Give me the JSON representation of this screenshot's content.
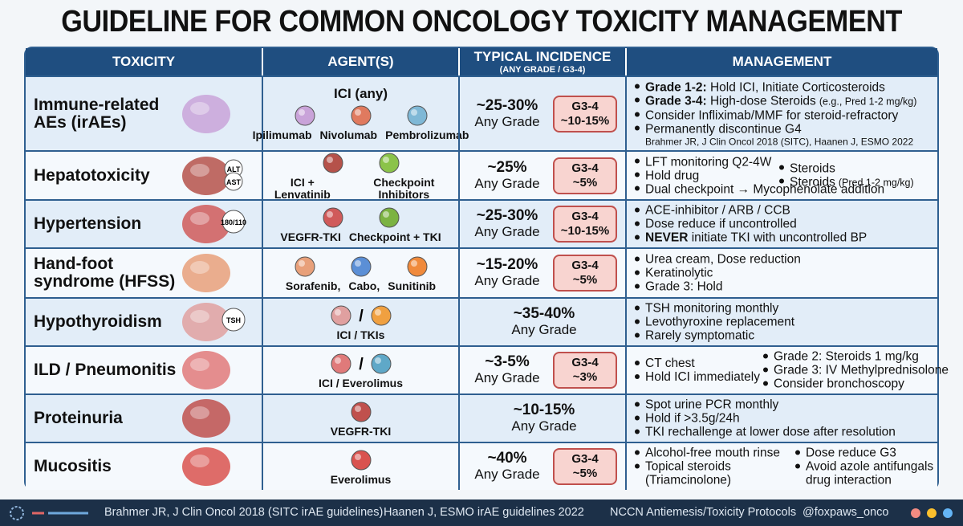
{
  "header": {
    "title": "GUIDELINE FOR COMMON ONCOLOGY TOXICITY MANAGEMENT"
  },
  "table": {
    "columns": [
      "TOXICITY",
      "AGENT(S)",
      "TYPICAL INCIDENCE",
      "MANAGEMENT"
    ],
    "incidence_sub": "(ANY GRADE / G3-4)",
    "rows": [
      {
        "toxicity": "Immune-related AEs (irAEs)",
        "agent_header": "ICI (any)",
        "agents": [
          "Ipilimumab",
          "Nivolumab",
          "Pembrolizumab"
        ],
        "incidence": "~25-30%",
        "any_grade": "Any Grade",
        "g34": {
          "label": "G3-4",
          "value": "~10-15%"
        },
        "management": [
          {
            "bold": "Grade 1-2:",
            "text": "Hold ICI, Initiate Corticosteroids"
          },
          {
            "bold": "Grade 3-4:",
            "text": "High-dose Steroids",
            "note": "(e.g., Pred 1-2 mg/kg)"
          },
          {
            "text": "Consider Infliximab/MMF for steroid-refractory"
          },
          {
            "text": "Permanently discontinue G4"
          }
        ],
        "citation": "Brahmer JR, J Clin Oncol 2018 (SITC), Haanen J, ESMO 2022"
      },
      {
        "toxicity": "Hepatotoxicity",
        "icon_text": [
          "ALT",
          "AST"
        ],
        "agents": [
          "ICI + Lenvatinib",
          "Checkpoint Inhibitors"
        ],
        "incidence": "~25%",
        "any_grade": "Any Grade",
        "g34": {
          "label": "G3-4",
          "value": "~5%"
        },
        "management": [
          {
            "text": "LFT monitoring Q2-4W"
          },
          {
            "text": "Hold drug"
          },
          {
            "text": "Dual checkpoint → Mycophenolate addition"
          }
        ],
        "management_right": [
          {
            "text": "Steroids"
          },
          {
            "text": "Steroids",
            "note": "(Pred 1-2 mg/kg)"
          }
        ]
      },
      {
        "toxicity": "Hypertension",
        "icon_text": [
          "180/110"
        ],
        "agents": [
          "VEGFR-TKI",
          "Checkpoint + TKI"
        ],
        "incidence": "~25-30%",
        "any_grade": "Any Grade",
        "g34": {
          "label": "G3-4",
          "value": "~10-15%"
        },
        "management": [
          {
            "text": "ACE-inhibitor / ARB / CCB"
          },
          {
            "text": "Dose reduce if uncontrolled"
          },
          {
            "bold": "NEVER",
            "text": "initiate TKI with uncontrolled BP"
          }
        ]
      },
      {
        "toxicity": "Hand-foot syndrome (HFSS)",
        "agents": [
          "Sorafenib,",
          "Cabo,",
          "Sunitinib"
        ],
        "incidence": "~15-20%",
        "any_grade": "Any Grade",
        "g34": {
          "label": "G3-4",
          "value": "~5%"
        },
        "management": [
          {
            "text": "Urea cream, Dose reduction"
          },
          {
            "text": "Keratinolytic"
          },
          {
            "text": "Grade 3: Hold"
          }
        ]
      },
      {
        "toxicity": "Hypothyroidism",
        "icon_text": [
          "TSH"
        ],
        "separator": "/",
        "agents": [
          "ICI / TKIs"
        ],
        "incidence": "~35-40%",
        "any_grade": "Any Grade",
        "management": [
          {
            "text": "TSH monitoring monthly"
          },
          {
            "text": "Levothyroxine replacement"
          },
          {
            "text": "Rarely symptomatic"
          }
        ]
      },
      {
        "toxicity": "ILD / Pneumonitis",
        "separator": "/",
        "agents": [
          "ICI / Everolimus"
        ],
        "incidence": "~3-5%",
        "any_grade": "Any Grade",
        "g34": {
          "label": "G3-4",
          "value": "~3%"
        },
        "management": [
          {
            "text": "CT chest"
          },
          {
            "text": "Hold ICI immediately"
          }
        ],
        "management_right": [
          {
            "text": "Grade 2: Steroids 1 mg/kg"
          },
          {
            "text": "Grade 3: IV Methylprednisolone"
          },
          {
            "text": "Consider bronchoscopy"
          }
        ]
      },
      {
        "toxicity": "Proteinuria",
        "agents": [
          "VEGFR-TKI"
        ],
        "incidence": "~10-15%",
        "any_grade": "Any Grade",
        "management": [
          {
            "text": "Spot urine PCR monthly"
          },
          {
            "text": "Hold if >3.5g/24h"
          },
          {
            "text": "TKI rechallenge at lower dose after resolution"
          }
        ]
      },
      {
        "toxicity": "Mucositis",
        "agents": [
          "Everolimus"
        ],
        "incidence": "~40%",
        "any_grade": "Any Grade",
        "g34": {
          "label": "G3-4",
          "value": "~5%"
        },
        "management": [
          {
            "text": "Alcohol-free mouth rinse"
          },
          {
            "text": "Topical steroids",
            "cont": "(Triamcinolone)"
          }
        ],
        "management_right": [
          {
            "text": "Dose reduce G3"
          },
          {
            "text": "Avoid azole antifungals",
            "cont": "drug interaction"
          }
        ]
      }
    ]
  },
  "footer": {
    "references": [
      "Brahmer JR, J Clin Oncol 2018 (SITC irAE guidelines)",
      "Haanen J, ESMO irAE guidelines 2022",
      "NCCN Antiemesis/Toxicity Protocols"
    ],
    "handle": "@foxpaws_onco"
  }
}
